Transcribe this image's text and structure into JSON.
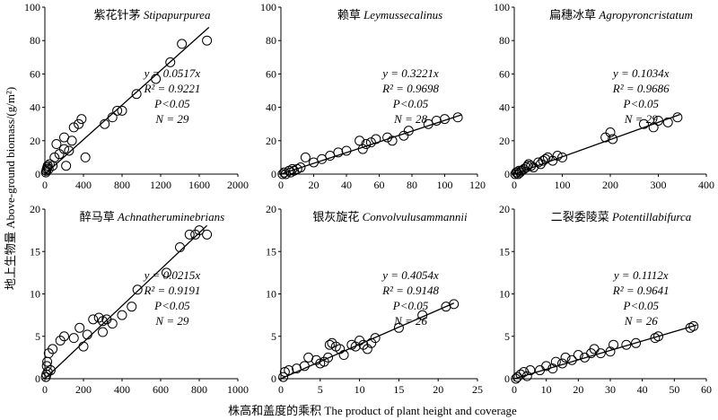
{
  "figure": {
    "ylabel": "地上生物量 Above-ground biomass/(g/m²)",
    "xlabel": "株高和盖度的乘积 The product of plant height and coverage"
  },
  "chart_data": [
    {
      "type": "scatter",
      "title_cn": "紫花针茅",
      "title_latin": "Stipapurpurea",
      "xlim": [
        0,
        2000
      ],
      "ylim": [
        0,
        100
      ],
      "xticks": [
        0,
        400,
        800,
        1200,
        1600,
        2000
      ],
      "yticks": [
        0,
        20,
        40,
        60,
        80,
        100
      ],
      "equation": "y = 0.0517x",
      "r2": "R² = 0.9221",
      "p": "P<0.05",
      "n": "N = 29",
      "slope": 0.0517,
      "fit_range": [
        0,
        1700
      ],
      "points": [
        [
          10,
          1
        ],
        [
          15,
          2
        ],
        [
          20,
          3
        ],
        [
          25,
          4
        ],
        [
          30,
          5
        ],
        [
          40,
          3
        ],
        [
          50,
          6
        ],
        [
          80,
          5
        ],
        [
          100,
          10
        ],
        [
          120,
          18
        ],
        [
          150,
          12
        ],
        [
          200,
          15
        ],
        [
          200,
          22
        ],
        [
          220,
          5
        ],
        [
          250,
          14
        ],
        [
          280,
          20
        ],
        [
          300,
          28
        ],
        [
          350,
          30
        ],
        [
          380,
          33
        ],
        [
          420,
          10
        ],
        [
          620,
          30
        ],
        [
          700,
          34
        ],
        [
          750,
          38
        ],
        [
          800,
          38
        ],
        [
          950,
          48
        ],
        [
          1150,
          57
        ],
        [
          1300,
          67
        ],
        [
          1420,
          78
        ],
        [
          1680,
          80
        ]
      ]
    },
    {
      "type": "scatter",
      "title_cn": "赖草",
      "title_latin": "Leymussecalinus",
      "xlim": [
        0,
        120
      ],
      "ylim": [
        0,
        100
      ],
      "xticks": [
        0,
        20,
        40,
        60,
        80,
        100,
        120
      ],
      "yticks": [
        0,
        20,
        40,
        60,
        80,
        100
      ],
      "equation": "y = 0.3221x",
      "r2": "R² = 0.9698",
      "p": "P<0.05",
      "n": "N = 28",
      "slope": 0.3221,
      "fit_range": [
        0,
        110
      ],
      "points": [
        [
          1,
          0
        ],
        [
          2,
          1
        ],
        [
          3,
          0
        ],
        [
          5,
          2
        ],
        [
          6,
          1
        ],
        [
          7,
          3
        ],
        [
          8,
          2
        ],
        [
          10,
          3
        ],
        [
          12,
          4
        ],
        [
          15,
          10
        ],
        [
          20,
          7
        ],
        [
          25,
          9
        ],
        [
          30,
          11
        ],
        [
          35,
          13
        ],
        [
          40,
          14
        ],
        [
          48,
          20
        ],
        [
          50,
          15
        ],
        [
          52,
          18
        ],
        [
          55,
          19
        ],
        [
          58,
          21
        ],
        [
          65,
          22
        ],
        [
          68,
          20
        ],
        [
          75,
          23
        ],
        [
          78,
          26
        ],
        [
          90,
          30
        ],
        [
          95,
          32
        ],
        [
          100,
          33
        ],
        [
          108,
          34
        ]
      ]
    },
    {
      "type": "scatter",
      "title_cn": "扁穗冰草",
      "title_latin": "Agropyroncristatum",
      "xlim": [
        0,
        400
      ],
      "ylim": [
        0,
        100
      ],
      "xticks": [
        0,
        100,
        200,
        300,
        400
      ],
      "yticks": [
        0,
        20,
        40,
        60,
        80,
        100
      ],
      "equation": "y = 0.1034x",
      "r2": "R² = 0.9686",
      "p": "P<0.05",
      "n": "N = 29",
      "slope": 0.1034,
      "fit_range": [
        0,
        345
      ],
      "points": [
        [
          2,
          0
        ],
        [
          4,
          1
        ],
        [
          6,
          1
        ],
        [
          8,
          0
        ],
        [
          10,
          2
        ],
        [
          12,
          1
        ],
        [
          15,
          2
        ],
        [
          20,
          3
        ],
        [
          25,
          4
        ],
        [
          28,
          5
        ],
        [
          30,
          6
        ],
        [
          35,
          5
        ],
        [
          40,
          4
        ],
        [
          50,
          7
        ],
        [
          55,
          6
        ],
        [
          60,
          8
        ],
        [
          65,
          9
        ],
        [
          70,
          10
        ],
        [
          80,
          8
        ],
        [
          90,
          11
        ],
        [
          100,
          10
        ],
        [
          190,
          22
        ],
        [
          200,
          25
        ],
        [
          205,
          21
        ],
        [
          270,
          30
        ],
        [
          290,
          28
        ],
        [
          300,
          32
        ],
        [
          320,
          31
        ],
        [
          340,
          34
        ]
      ]
    },
    {
      "type": "scatter",
      "title_cn": "醉马草",
      "title_latin": "Achnatheruminebrians",
      "xlim": [
        0,
        1000
      ],
      "ylim": [
        0,
        20
      ],
      "xticks": [
        0,
        200,
        400,
        600,
        800,
        1000
      ],
      "yticks": [
        0,
        5,
        10,
        15,
        20
      ],
      "equation": "y = 0.0215x",
      "r2": "R² = 0.9191",
      "p": "P<0.05",
      "n": "N = 29",
      "slope": 0.0215,
      "fit_range": [
        0,
        840
      ],
      "points": [
        [
          5,
          0.2
        ],
        [
          8,
          0.5
        ],
        [
          10,
          1.5
        ],
        [
          12,
          2
        ],
        [
          15,
          0.8
        ],
        [
          20,
          3
        ],
        [
          30,
          1
        ],
        [
          40,
          3.5
        ],
        [
          80,
          4.5
        ],
        [
          100,
          5
        ],
        [
          150,
          4.8
        ],
        [
          180,
          6
        ],
        [
          200,
          3.8
        ],
        [
          220,
          5.2
        ],
        [
          250,
          7
        ],
        [
          280,
          7.2
        ],
        [
          300,
          6.8
        ],
        [
          300,
          5.5
        ],
        [
          320,
          7
        ],
        [
          350,
          6.5
        ],
        [
          400,
          7.5
        ],
        [
          450,
          8.5
        ],
        [
          480,
          10.5
        ],
        [
          630,
          12.5
        ],
        [
          700,
          15.5
        ],
        [
          750,
          17
        ],
        [
          780,
          17
        ],
        [
          800,
          17.5
        ],
        [
          840,
          17
        ]
      ]
    },
    {
      "type": "scatter",
      "title_cn": "银灰旋花",
      "title_latin": "Convolvulusammannii",
      "xlim": [
        0,
        25
      ],
      "ylim": [
        0,
        20
      ],
      "xticks": [
        0,
        5,
        10,
        15,
        20,
        25
      ],
      "yticks": [
        0,
        5,
        10,
        15,
        20
      ],
      "equation": "y = 0.4054x",
      "r2": "R² = 0.9148",
      "p": "P<0.05",
      "n": "N = 26",
      "slope": 0.4054,
      "fit_range": [
        0,
        22
      ],
      "points": [
        [
          0.3,
          0.2
        ],
        [
          0.5,
          0.8
        ],
        [
          1,
          1
        ],
        [
          2,
          1.2
        ],
        [
          3,
          1.5
        ],
        [
          3.5,
          2.5
        ],
        [
          4.5,
          2.2
        ],
        [
          5,
          1.8
        ],
        [
          5.5,
          2
        ],
        [
          6,
          2.5
        ],
        [
          6.2,
          4
        ],
        [
          6.5,
          4.2
        ],
        [
          7,
          3.8
        ],
        [
          7.5,
          3.5
        ],
        [
          8,
          2.8
        ],
        [
          9,
          4
        ],
        [
          9.5,
          3.8
        ],
        [
          10,
          4.5
        ],
        [
          10.5,
          4
        ],
        [
          11,
          3.5
        ],
        [
          11.5,
          4.2
        ],
        [
          12,
          4.8
        ],
        [
          15,
          6
        ],
        [
          18,
          7.5
        ],
        [
          21,
          8.5
        ],
        [
          22,
          8.8
        ]
      ]
    },
    {
      "type": "scatter",
      "title_cn": "二裂委陵菜",
      "title_latin": "Potentillabifurca",
      "xlim": [
        0,
        60
      ],
      "ylim": [
        0,
        20
      ],
      "xticks": [
        0,
        10,
        20,
        30,
        40,
        50,
        60
      ],
      "yticks": [
        0,
        5,
        10,
        15,
        20
      ],
      "equation": "y = 0.1112x",
      "r2": "R² = 0.9641",
      "p": "P<0.05",
      "n": "N = 26",
      "slope": 0.1112,
      "fit_range": [
        0,
        57
      ],
      "points": [
        [
          0.5,
          0
        ],
        [
          1,
          0.2
        ],
        [
          2,
          0.5
        ],
        [
          3,
          0.8
        ],
        [
          4,
          0.3
        ],
        [
          5,
          1
        ],
        [
          8,
          1
        ],
        [
          10,
          1.5
        ],
        [
          12,
          1.2
        ],
        [
          13,
          2
        ],
        [
          15,
          1.8
        ],
        [
          16,
          2.5
        ],
        [
          18,
          2.2
        ],
        [
          20,
          2.8
        ],
        [
          22,
          2.5
        ],
        [
          24,
          3
        ],
        [
          25,
          3.5
        ],
        [
          27,
          3
        ],
        [
          30,
          3.2
        ],
        [
          31,
          4
        ],
        [
          35,
          4
        ],
        [
          38,
          4.2
        ],
        [
          44,
          4.8
        ],
        [
          45,
          5
        ],
        [
          55,
          6
        ],
        [
          56,
          6.2
        ]
      ]
    }
  ]
}
